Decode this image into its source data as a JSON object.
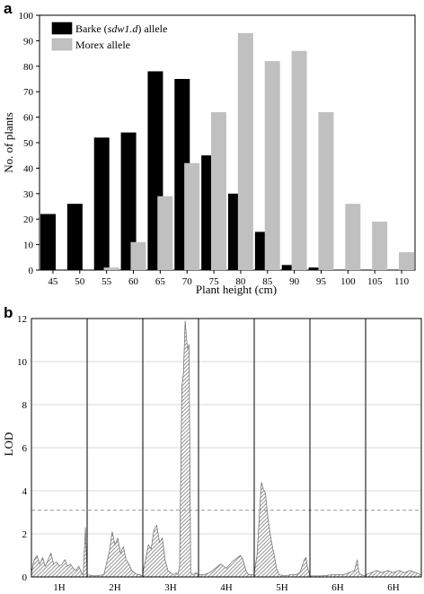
{
  "panels": {
    "a_letter": "a",
    "b_letter": "b"
  },
  "chart_data": [
    {
      "type": "bar",
      "xlabel": "Plant height (cm)",
      "ylabel": "No. of plants",
      "ylim": [
        0,
        100
      ],
      "yticks": [
        0,
        10,
        20,
        30,
        40,
        50,
        60,
        70,
        80,
        90,
        100
      ],
      "categories": [
        "45",
        "50",
        "55",
        "60",
        "65",
        "70",
        "75",
        "80",
        "85",
        "90",
        "95",
        "100",
        "105",
        "110"
      ],
      "series": [
        {
          "name_pre": "Barke (",
          "name_italic": "sdw1.d",
          "name_post": ") allele",
          "name": "Barke (sdw1.d) allele",
          "color": "#000000",
          "values": [
            22,
            26,
            52,
            54,
            78,
            75,
            45,
            30,
            15,
            2,
            1,
            0,
            0,
            0
          ]
        },
        {
          "name": "Morex allele",
          "color": "#c0c0c0",
          "values": [
            0,
            0,
            1,
            11,
            29,
            42,
            62,
            93,
            82,
            86,
            62,
            26,
            19,
            7
          ]
        }
      ],
      "legend_position": "top-left"
    },
    {
      "type": "area",
      "ylabel": "LOD",
      "ylim": [
        0,
        12
      ],
      "yticks": [
        0,
        2,
        4,
        6,
        8,
        10,
        12
      ],
      "threshold": 3.1,
      "chromosomes": [
        "1H",
        "2H",
        "3H",
        "4H",
        "5H",
        "6H",
        "6H"
      ],
      "fill_color": "#9a9a9a",
      "segments": [
        {
          "label": "1H",
          "points": [
            [
              0,
              0.2
            ],
            [
              0.05,
              0.8
            ],
            [
              0.1,
              1.0
            ],
            [
              0.15,
              0.6
            ],
            [
              0.2,
              0.9
            ],
            [
              0.25,
              0.5
            ],
            [
              0.3,
              0.8
            ],
            [
              0.35,
              1.1
            ],
            [
              0.4,
              0.6
            ],
            [
              0.45,
              0.7
            ],
            [
              0.5,
              0.5
            ],
            [
              0.55,
              0.6
            ],
            [
              0.6,
              0.8
            ],
            [
              0.65,
              0.5
            ],
            [
              0.7,
              0.6
            ],
            [
              0.75,
              0.4
            ],
            [
              0.8,
              0.3
            ],
            [
              0.85,
              0.5
            ],
            [
              0.9,
              0.2
            ],
            [
              0.93,
              0.1
            ],
            [
              0.97,
              2.3
            ],
            [
              1,
              0.1
            ]
          ]
        },
        {
          "label": "2H",
          "points": [
            [
              0,
              0.1
            ],
            [
              0.15,
              0.05
            ],
            [
              0.3,
              0.1
            ],
            [
              0.4,
              1.2
            ],
            [
              0.45,
              2.1
            ],
            [
              0.5,
              1.5
            ],
            [
              0.55,
              1.8
            ],
            [
              0.6,
              1.1
            ],
            [
              0.65,
              1.4
            ],
            [
              0.7,
              0.8
            ],
            [
              0.75,
              0.6
            ],
            [
              0.8,
              0.3
            ],
            [
              0.85,
              0.2
            ],
            [
              0.9,
              0.1
            ],
            [
              0.95,
              0.1
            ],
            [
              1,
              0.05
            ]
          ]
        },
        {
          "label": "3H",
          "points": [
            [
              0,
              0.2
            ],
            [
              0.05,
              0.8
            ],
            [
              0.1,
              1.5
            ],
            [
              0.15,
              1.3
            ],
            [
              0.2,
              2.2
            ],
            [
              0.25,
              2.4
            ],
            [
              0.3,
              1.6
            ],
            [
              0.35,
              1.8
            ],
            [
              0.4,
              0.8
            ],
            [
              0.45,
              0.3
            ],
            [
              0.5,
              0.2
            ],
            [
              0.55,
              0.1
            ],
            [
              0.6,
              0.2
            ],
            [
              0.63,
              0.1
            ],
            [
              0.66,
              0.5
            ],
            [
              0.7,
              8.8
            ],
            [
              0.73,
              9.5
            ],
            [
              0.76,
              11.9
            ],
            [
              0.8,
              10.6
            ],
            [
              0.83,
              10.8
            ],
            [
              0.86,
              0.2
            ],
            [
              0.9,
              0.1
            ],
            [
              0.95,
              0.2
            ],
            [
              1,
              0.1
            ]
          ]
        },
        {
          "label": "4H",
          "points": [
            [
              0,
              0.1
            ],
            [
              0.1,
              0.1
            ],
            [
              0.2,
              0.2
            ],
            [
              0.3,
              0.4
            ],
            [
              0.4,
              0.6
            ],
            [
              0.5,
              0.4
            ],
            [
              0.6,
              0.7
            ],
            [
              0.7,
              0.9
            ],
            [
              0.75,
              1.0
            ],
            [
              0.8,
              0.8
            ],
            [
              0.85,
              0.3
            ],
            [
              0.9,
              0.1
            ],
            [
              1,
              0.1
            ]
          ]
        },
        {
          "label": "5H",
          "points": [
            [
              0,
              0.2
            ],
            [
              0.05,
              1.0
            ],
            [
              0.1,
              3.2
            ],
            [
              0.13,
              4.4
            ],
            [
              0.16,
              4.1
            ],
            [
              0.2,
              3.9
            ],
            [
              0.24,
              2.9
            ],
            [
              0.28,
              2.1
            ],
            [
              0.32,
              1.5
            ],
            [
              0.36,
              1.0
            ],
            [
              0.4,
              0.4
            ],
            [
              0.45,
              0.1
            ],
            [
              0.55,
              0.05
            ],
            [
              0.65,
              0.1
            ],
            [
              0.75,
              0.1
            ],
            [
              0.82,
              0.2
            ],
            [
              0.86,
              0.5
            ],
            [
              0.9,
              0.8
            ],
            [
              0.93,
              0.9
            ],
            [
              0.96,
              0.4
            ],
            [
              1,
              0.1
            ]
          ]
        },
        {
          "label": "6H",
          "points": [
            [
              0,
              0.05
            ],
            [
              0.2,
              0.05
            ],
            [
              0.4,
              0.1
            ],
            [
              0.6,
              0.1
            ],
            [
              0.7,
              0.2
            ],
            [
              0.8,
              0.3
            ],
            [
              0.85,
              0.8
            ],
            [
              0.88,
              0.2
            ],
            [
              0.92,
              0.1
            ],
            [
              1,
              0.05
            ]
          ]
        },
        {
          "label": "6H",
          "points": [
            [
              0,
              0.1
            ],
            [
              0.1,
              0.2
            ],
            [
              0.2,
              0.3
            ],
            [
              0.3,
              0.2
            ],
            [
              0.4,
              0.3
            ],
            [
              0.5,
              0.2
            ],
            [
              0.6,
              0.3
            ],
            [
              0.7,
              0.2
            ],
            [
              0.8,
              0.3
            ],
            [
              0.9,
              0.2
            ],
            [
              1,
              0.1
            ]
          ]
        }
      ]
    }
  ]
}
